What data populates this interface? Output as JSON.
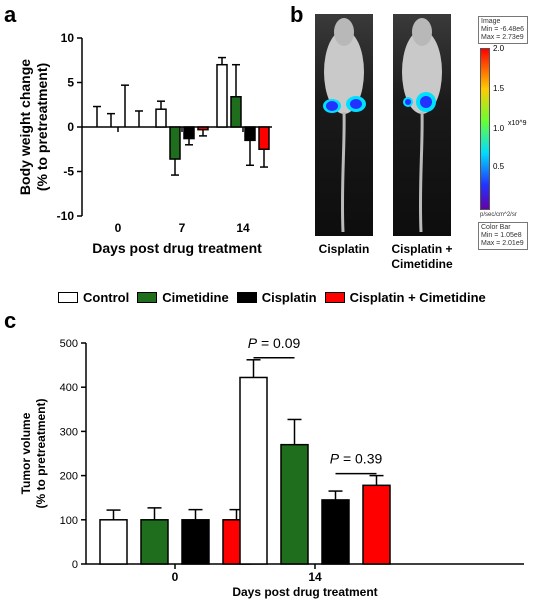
{
  "panels": {
    "a": "a",
    "b": "b",
    "c": "c"
  },
  "legend": [
    {
      "name": "Control",
      "color": "#ffffff"
    },
    {
      "name": "Cimetidine",
      "color": "#1e6e1e"
    },
    {
      "name": "Cisplatin",
      "color": "#000000"
    },
    {
      "name": "Cisplatin + Cimetidine",
      "color": "#ff0000"
    }
  ],
  "imaging": {
    "labels": [
      "Cisplatin",
      "Cisplatin +\nCimetidine"
    ],
    "colorbar_top": "Image\nMin = -6.48e6\nMax = 2.73e9",
    "colorbar_ticks": [
      "2.0",
      "1.5",
      "1.0",
      "0.5"
    ],
    "colorbar_exponent": "x10^9",
    "colorbar_unit": "p/sec/cm^2/sr",
    "colorbar_bottom": "Color Bar\nMin = 1.05e8\nMax = 2.01e9"
  },
  "chart_data": [
    {
      "id": "a",
      "type": "bar",
      "title": "",
      "xlabel": "Days post drug treatment",
      "ylabel": "Body weight change\n(% to pretreatment)",
      "ylim": [
        -10,
        10
      ],
      "yticks": [
        10,
        5,
        0,
        -5,
        -10
      ],
      "categories": [
        "0",
        "7",
        "14"
      ],
      "series": [
        {
          "name": "Control",
          "values": [
            0.0,
            2.0,
            7.0
          ],
          "errors": [
            2.3,
            0.9,
            0.8
          ]
        },
        {
          "name": "Cimetidine",
          "values": [
            0.0,
            -3.6,
            3.4
          ],
          "errors": [
            1.5,
            1.8,
            3.6
          ]
        },
        {
          "name": "Cisplatin",
          "values": [
            0.0,
            -1.3,
            -1.5
          ],
          "errors": [
            4.7,
            0.7,
            2.8
          ]
        },
        {
          "name": "Cisplatin + Cimetidine",
          "values": [
            0.0,
            -0.3,
            -2.5
          ],
          "errors": [
            1.8,
            0.7,
            2.0
          ]
        }
      ]
    },
    {
      "id": "c",
      "type": "bar",
      "title": "",
      "xlabel": "Days post drug treatment",
      "ylabel": "Tumor  volume\n(% to pretreatment)",
      "ylim": [
        0,
        500
      ],
      "yticks": [
        500,
        400,
        300,
        200,
        100,
        0
      ],
      "categories": [
        "0",
        "14"
      ],
      "series": [
        {
          "name": "Control",
          "values": [
            100,
            422
          ],
          "errors": [
            22,
            40
          ]
        },
        {
          "name": "Cimetidine",
          "values": [
            100,
            270
          ],
          "errors": [
            27,
            57
          ]
        },
        {
          "name": "Cisplatin",
          "values": [
            100,
            145
          ],
          "errors": [
            23,
            20
          ]
        },
        {
          "name": "Cisplatin + Cimetidine",
          "values": [
            100,
            178
          ],
          "errors": [
            23,
            22
          ]
        }
      ],
      "annotations": [
        {
          "text": "P = 0.09",
          "between": [
            "Control",
            "Cimetidine"
          ],
          "category": "14"
        },
        {
          "text": "P = 0.39",
          "between": [
            "Cisplatin",
            "Cisplatin + Cimetidine"
          ],
          "category": "14"
        }
      ]
    }
  ]
}
